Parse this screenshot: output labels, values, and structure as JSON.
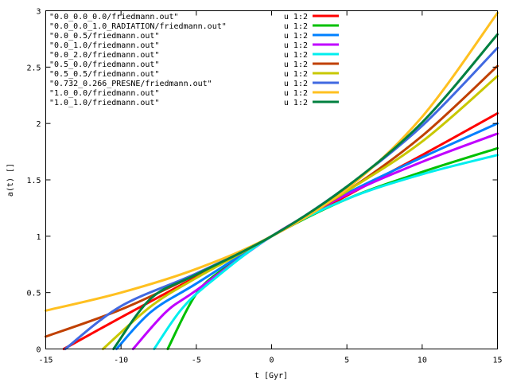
{
  "chart_data": {
    "type": "line",
    "title": "",
    "xlabel": "t [Gyr]",
    "ylabel": "a(t) []",
    "xlim": [
      -15,
      15
    ],
    "ylim": [
      0,
      3
    ],
    "xticks": [
      -15,
      -10,
      -5,
      0,
      5,
      10,
      15
    ],
    "yticks": [
      0,
      0.5,
      1,
      1.5,
      2,
      2.5,
      3
    ],
    "xtick_labels": [
      "-15",
      "-10",
      "-5",
      "0",
      "5",
      "10",
      "15"
    ],
    "ytick_labels": [
      "0",
      "0.5",
      "1",
      "1.5",
      "2",
      "2.5",
      "3"
    ],
    "grid": false,
    "legend_position": "top-left",
    "series": [
      {
        "name": "\"0.0_0.0_0.0/friedmann.out\"",
        "using": "u 1:2",
        "color": "#ff0000",
        "x": [
          -13.8,
          -10,
          -5,
          0,
          5,
          10,
          15
        ],
        "y": [
          0.0,
          0.28,
          0.64,
          1.0,
          1.36,
          1.72,
          2.09
        ]
      },
      {
        "name": "\"0.0_0.0_1.0_RADIATION/friedmann.out\"",
        "using": "u 1:2",
        "color": "#00c000",
        "x": [
          -6.9,
          -5,
          -3,
          0,
          5,
          10,
          15
        ],
        "y": [
          0.0,
          0.49,
          0.73,
          1.0,
          1.33,
          1.57,
          1.78
        ]
      },
      {
        "name": "\"0.0_0.5/friedmann.out\"",
        "using": "u 1:2",
        "color": "#0080ff",
        "x": [
          -10.3,
          -8,
          -5,
          0,
          5,
          10,
          15
        ],
        "y": [
          0.0,
          0.33,
          0.58,
          1.0,
          1.38,
          1.7,
          2.0
        ]
      },
      {
        "name": "\"0.0_1.0/friedmann.out\"",
        "using": "u 1:2",
        "color": "#c000ff",
        "x": [
          -9.2,
          -7,
          -5,
          0,
          5,
          10,
          15
        ],
        "y": [
          0.0,
          0.33,
          0.52,
          1.0,
          1.37,
          1.66,
          1.91
        ]
      },
      {
        "name": "\"0.0_2.0/friedmann.out\"",
        "using": "u 1:2",
        "color": "#00eeee",
        "x": [
          -7.8,
          -6,
          -4,
          0,
          5,
          10,
          15
        ],
        "y": [
          0.0,
          0.35,
          0.6,
          1.0,
          1.33,
          1.55,
          1.72
        ]
      },
      {
        "name": "\"0.5_0.0/friedmann.out\"",
        "using": "u 1:2",
        "color": "#c04000",
        "x": [
          -15,
          -10,
          -5,
          0,
          5,
          10,
          15
        ],
        "y": [
          0.11,
          0.35,
          0.66,
          1.0,
          1.4,
          1.89,
          2.51
        ]
      },
      {
        "name": "\"0.5_0.5/friedmann.out\"",
        "using": "u 1:2",
        "color": "#c8c800",
        "x": [
          -11.2,
          -8,
          -5,
          0,
          5,
          10,
          15
        ],
        "y": [
          0.0,
          0.38,
          0.63,
          1.0,
          1.4,
          1.84,
          2.42
        ]
      },
      {
        "name": "\"0.732_0.266_PRESNE/friedmann.out\"",
        "using": "u 1:2",
        "color": "#4169e1",
        "x": [
          -13.7,
          -10,
          -5,
          0,
          5,
          10,
          15
        ],
        "y": [
          0.0,
          0.38,
          0.67,
          1.0,
          1.44,
          1.98,
          2.67
        ]
      },
      {
        "name": "\"1.0_0.0/friedmann.out\"",
        "using": "u 1:2",
        "color": "#ffc020",
        "x": [
          -15,
          -10,
          -5,
          0,
          5,
          10,
          15
        ],
        "y": [
          0.34,
          0.5,
          0.71,
          1.0,
          1.42,
          2.06,
          2.98
        ]
      },
      {
        "name": "\"1.0_1.0/friedmann.out\"",
        "using": "u 1:2",
        "color": "#008040",
        "x": [
          -10.5,
          -8,
          -5,
          0,
          5,
          10,
          15
        ],
        "y": [
          0.0,
          0.45,
          0.66,
          1.0,
          1.44,
          2.01,
          2.79
        ]
      }
    ]
  }
}
